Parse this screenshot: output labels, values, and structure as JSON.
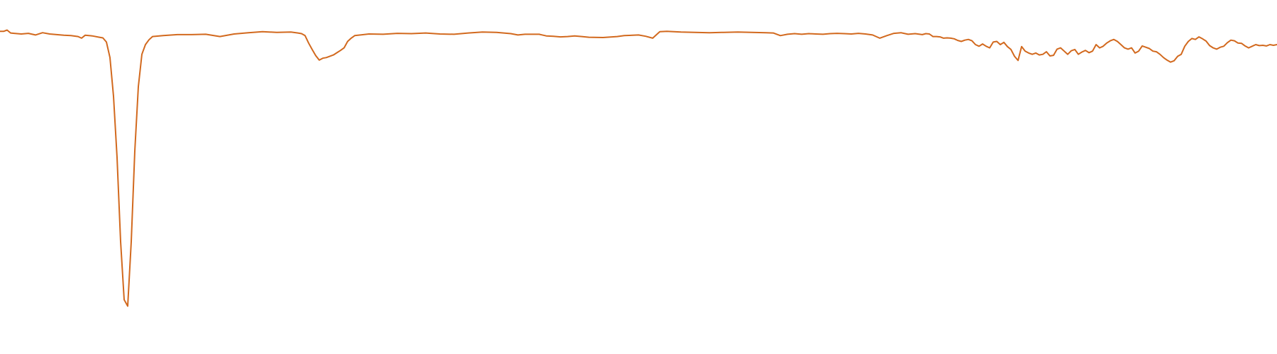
{
  "chart_data": {
    "type": "line",
    "title": "",
    "xlabel": "",
    "ylabel": "",
    "xlim": [
      0,
      1800
    ],
    "ylim": [
      0.0,
      1.0
    ],
    "grid": false,
    "axes_visible": false,
    "legend": "none",
    "series": [
      {
        "color": "#d2691e",
        "points": [
          [
            0,
            0.951
          ],
          [
            5,
            0.951
          ],
          [
            10,
            0.955
          ],
          [
            15,
            0.946
          ],
          [
            20,
            0.945
          ],
          [
            30,
            0.943
          ],
          [
            40,
            0.945
          ],
          [
            50,
            0.94
          ],
          [
            60,
            0.947
          ],
          [
            70,
            0.943
          ],
          [
            80,
            0.941
          ],
          [
            90,
            0.939
          ],
          [
            100,
            0.938
          ],
          [
            110,
            0.935
          ],
          [
            115,
            0.93
          ],
          [
            120,
            0.939
          ],
          [
            130,
            0.937
          ],
          [
            140,
            0.933
          ],
          [
            145,
            0.931
          ],
          [
            150,
            0.918
          ],
          [
            155,
            0.87
          ],
          [
            160,
            0.75
          ],
          [
            165,
            0.56
          ],
          [
            170,
            0.3
          ],
          [
            175,
            0.12
          ],
          [
            180,
            0.1
          ],
          [
            185,
            0.3
          ],
          [
            190,
            0.58
          ],
          [
            195,
            0.78
          ],
          [
            200,
            0.88
          ],
          [
            205,
            0.91
          ],
          [
            210,
            0.925
          ],
          [
            215,
            0.935
          ],
          [
            230,
            0.938
          ],
          [
            250,
            0.941
          ],
          [
            270,
            0.941
          ],
          [
            290,
            0.942
          ],
          [
            310,
            0.935
          ],
          [
            330,
            0.943
          ],
          [
            350,
            0.947
          ],
          [
            370,
            0.95
          ],
          [
            390,
            0.948
          ],
          [
            410,
            0.949
          ],
          [
            420,
            0.946
          ],
          [
            425,
            0.944
          ],
          [
            430,
            0.938
          ],
          [
            435,
            0.915
          ],
          [
            440,
            0.895
          ],
          [
            445,
            0.876
          ],
          [
            450,
            0.862
          ],
          [
            455,
            0.868
          ],
          [
            460,
            0.87
          ],
          [
            470,
            0.878
          ],
          [
            475,
            0.885
          ],
          [
            480,
            0.892
          ],
          [
            485,
            0.9
          ],
          [
            490,
            0.92
          ],
          [
            495,
            0.93
          ],
          [
            500,
            0.938
          ],
          [
            520,
            0.943
          ],
          [
            540,
            0.942
          ],
          [
            560,
            0.945
          ],
          [
            580,
            0.944
          ],
          [
            600,
            0.946
          ],
          [
            620,
            0.943
          ],
          [
            640,
            0.942
          ],
          [
            660,
            0.946
          ],
          [
            680,
            0.949
          ],
          [
            700,
            0.948
          ],
          [
            720,
            0.944
          ],
          [
            730,
            0.94
          ],
          [
            740,
            0.942
          ],
          [
            760,
            0.942
          ],
          [
            770,
            0.937
          ],
          [
            780,
            0.936
          ],
          [
            790,
            0.934
          ],
          [
            800,
            0.935
          ],
          [
            810,
            0.937
          ],
          [
            820,
            0.935
          ],
          [
            830,
            0.933
          ],
          [
            850,
            0.932
          ],
          [
            870,
            0.935
          ],
          [
            880,
            0.938
          ],
          [
            900,
            0.94
          ],
          [
            910,
            0.936
          ],
          [
            920,
            0.93
          ],
          [
            930,
            0.95
          ],
          [
            940,
            0.951
          ],
          [
            960,
            0.949
          ],
          [
            980,
            0.948
          ],
          [
            1000,
            0.947
          ],
          [
            1020,
            0.948
          ],
          [
            1040,
            0.949
          ],
          [
            1060,
            0.948
          ],
          [
            1080,
            0.947
          ],
          [
            1090,
            0.946
          ],
          [
            1100,
            0.938
          ],
          [
            1110,
            0.942
          ],
          [
            1120,
            0.944
          ],
          [
            1130,
            0.942
          ],
          [
            1140,
            0.944
          ],
          [
            1150,
            0.943
          ],
          [
            1160,
            0.942
          ],
          [
            1170,
            0.944
          ],
          [
            1180,
            0.945
          ],
          [
            1190,
            0.944
          ],
          [
            1200,
            0.943
          ],
          [
            1210,
            0.945
          ],
          [
            1220,
            0.943
          ],
          [
            1230,
            0.94
          ],
          [
            1240,
            0.93
          ],
          [
            1250,
            0.938
          ],
          [
            1260,
            0.945
          ],
          [
            1270,
            0.947
          ],
          [
            1280,
            0.942
          ],
          [
            1290,
            0.944
          ],
          [
            1300,
            0.941
          ],
          [
            1305,
            0.944
          ],
          [
            1310,
            0.943
          ],
          [
            1315,
            0.935
          ],
          [
            1320,
            0.935
          ],
          [
            1325,
            0.934
          ],
          [
            1330,
            0.93
          ],
          [
            1335,
            0.931
          ],
          [
            1340,
            0.93
          ],
          [
            1345,
            0.928
          ],
          [
            1350,
            0.923
          ],
          [
            1355,
            0.92
          ],
          [
            1360,
            0.924
          ],
          [
            1365,
            0.926
          ],
          [
            1370,
            0.922
          ],
          [
            1375,
            0.91
          ],
          [
            1380,
            0.905
          ],
          [
            1385,
            0.912
          ],
          [
            1390,
            0.905
          ],
          [
            1395,
            0.9
          ],
          [
            1400,
            0.918
          ],
          [
            1405,
            0.92
          ],
          [
            1410,
            0.91
          ],
          [
            1415,
            0.917
          ],
          [
            1420,
            0.904
          ],
          [
            1425,
            0.895
          ],
          [
            1430,
            0.874
          ],
          [
            1435,
            0.861
          ],
          [
            1440,
            0.904
          ],
          [
            1445,
            0.89
          ],
          [
            1450,
            0.884
          ],
          [
            1455,
            0.88
          ],
          [
            1460,
            0.884
          ],
          [
            1465,
            0.878
          ],
          [
            1470,
            0.88
          ],
          [
            1475,
            0.888
          ],
          [
            1480,
            0.875
          ],
          [
            1485,
            0.877
          ],
          [
            1490,
            0.896
          ],
          [
            1495,
            0.9
          ],
          [
            1500,
            0.89
          ],
          [
            1505,
            0.88
          ],
          [
            1510,
            0.891
          ],
          [
            1515,
            0.895
          ],
          [
            1520,
            0.88
          ],
          [
            1525,
            0.887
          ],
          [
            1530,
            0.892
          ],
          [
            1535,
            0.885
          ],
          [
            1540,
            0.89
          ],
          [
            1545,
            0.91
          ],
          [
            1550,
            0.9
          ],
          [
            1555,
            0.905
          ],
          [
            1560,
            0.915
          ],
          [
            1565,
            0.922
          ],
          [
            1570,
            0.926
          ],
          [
            1575,
            0.92
          ],
          [
            1580,
            0.91
          ],
          [
            1585,
            0.9
          ],
          [
            1590,
            0.896
          ],
          [
            1595,
            0.9
          ],
          [
            1600,
            0.884
          ],
          [
            1605,
            0.89
          ],
          [
            1610,
            0.906
          ],
          [
            1615,
            0.902
          ],
          [
            1620,
            0.898
          ],
          [
            1625,
            0.89
          ],
          [
            1630,
            0.888
          ],
          [
            1635,
            0.88
          ],
          [
            1640,
            0.87
          ],
          [
            1645,
            0.862
          ],
          [
            1650,
            0.856
          ],
          [
            1655,
            0.86
          ],
          [
            1660,
            0.874
          ],
          [
            1665,
            0.88
          ],
          [
            1670,
            0.905
          ],
          [
            1675,
            0.92
          ],
          [
            1680,
            0.929
          ],
          [
            1685,
            0.926
          ],
          [
            1690,
            0.934
          ],
          [
            1695,
            0.928
          ],
          [
            1700,
            0.921
          ],
          [
            1705,
            0.907
          ],
          [
            1710,
            0.9
          ],
          [
            1715,
            0.896
          ],
          [
            1720,
            0.902
          ],
          [
            1725,
            0.905
          ],
          [
            1730,
            0.916
          ],
          [
            1735,
            0.924
          ],
          [
            1740,
            0.922
          ],
          [
            1745,
            0.915
          ],
          [
            1750,
            0.914
          ],
          [
            1755,
            0.906
          ],
          [
            1760,
            0.9
          ],
          [
            1765,
            0.905
          ],
          [
            1770,
            0.91
          ],
          [
            1775,
            0.907
          ],
          [
            1780,
            0.908
          ],
          [
            1785,
            0.906
          ],
          [
            1790,
            0.91
          ],
          [
            1795,
            0.908
          ],
          [
            1800,
            0.91
          ]
        ]
      }
    ]
  }
}
